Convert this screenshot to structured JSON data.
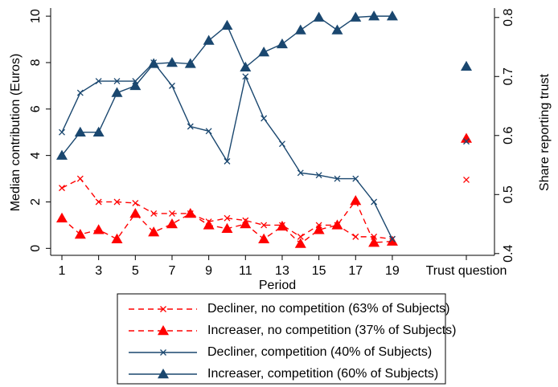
{
  "chart_data": {
    "type": "line",
    "y_label": "Median contribution (Euros)",
    "y2_label": "Share reporting trust",
    "x_label": "Period",
    "categories": [
      "1",
      null,
      "3",
      null,
      "5",
      null,
      "7",
      null,
      "9",
      null,
      "11",
      null,
      "13",
      null,
      "15",
      null,
      "17",
      null,
      "19"
    ],
    "trust_label": "Trust question",
    "ylim": [
      -0.3,
      10.35
    ],
    "yticks": [
      0,
      2,
      4,
      6,
      8,
      10
    ],
    "y2lim": [
      0.397,
      0.816
    ],
    "y2ticks": [
      0.4,
      0.5,
      0.6,
      0.7,
      0.8
    ],
    "series": [
      {
        "name": "Decliner, no competition (63% of Subjects)",
        "color": "#ff0000",
        "dash": true,
        "marker": "x",
        "values": [
          2.6,
          3.0,
          2.0,
          2.0,
          1.95,
          1.5,
          1.5,
          1.5,
          1.15,
          1.3,
          1.2,
          1.0,
          1.0,
          0.5,
          1.0,
          1.0,
          0.5,
          0.5,
          0.4
        ],
        "trust": 0.525
      },
      {
        "name": "Increaser, no competition (37% of Subjects)",
        "color": "#ff0000",
        "dash": true,
        "marker": "triangle",
        "values": [
          1.3,
          0.6,
          0.8,
          0.4,
          1.5,
          0.7,
          1.05,
          1.5,
          1.0,
          0.85,
          1.05,
          0.4,
          0.95,
          0.2,
          0.8,
          1.0,
          2.05,
          0.25,
          0.3
        ],
        "trust": 0.595
      },
      {
        "name": "Decliner, competition (40% of Subjects)",
        "color": "#1a476f",
        "dash": false,
        "marker": "x",
        "values": [
          5.0,
          6.7,
          7.2,
          7.2,
          7.2,
          8.0,
          7.0,
          5.25,
          5.05,
          3.75,
          7.4,
          5.6,
          4.5,
          3.25,
          3.15,
          3.0,
          3.0,
          2.0,
          0.4
        ],
        "trust": 0.59
      },
      {
        "name": "Increaser, competition (60% of Subjects)",
        "color": "#1a476f",
        "dash": false,
        "marker": "triangle",
        "values": [
          4.0,
          5.0,
          5.0,
          6.7,
          7.0,
          7.95,
          8.0,
          7.95,
          8.95,
          9.6,
          7.8,
          8.45,
          8.8,
          9.4,
          9.95,
          9.4,
          9.95,
          10.0,
          10.0
        ],
        "trust": 0.717
      }
    ]
  }
}
